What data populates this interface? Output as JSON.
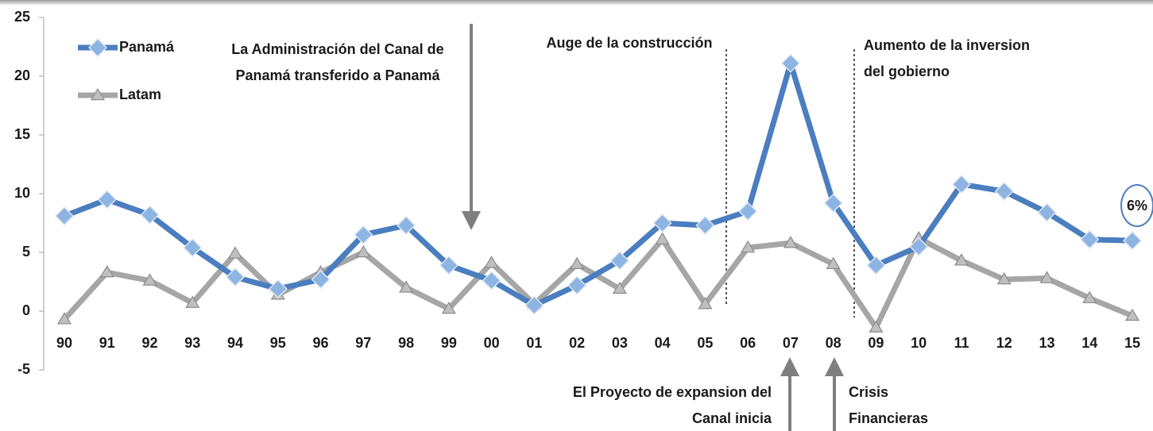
{
  "chart_data": {
    "type": "line",
    "categories": [
      "90",
      "91",
      "92",
      "93",
      "94",
      "95",
      "96",
      "97",
      "98",
      "99",
      "00",
      "01",
      "02",
      "03",
      "04",
      "05",
      "06",
      "07",
      "08",
      "09",
      "10",
      "11",
      "12",
      "13",
      "14",
      "15"
    ],
    "series": [
      {
        "name": "Panamá",
        "color": "#4a7ebf",
        "marker": "diamond",
        "values": [
          8.1,
          9.5,
          8.2,
          5.4,
          2.9,
          1.9,
          2.7,
          6.5,
          7.3,
          3.9,
          2.6,
          0.5,
          2.2,
          4.3,
          7.5,
          7.3,
          8.5,
          21.1,
          9.2,
          3.9,
          5.5,
          10.8,
          10.2,
          8.4,
          6.1,
          6.0
        ]
      },
      {
        "name": "Latam",
        "color": "#a6a6a6",
        "marker": "triangle",
        "values": [
          -0.7,
          3.3,
          2.6,
          0.7,
          4.9,
          1.4,
          3.3,
          5.0,
          2.0,
          0.2,
          4.1,
          0.6,
          4.0,
          1.9,
          6.1,
          0.6,
          5.4,
          5.8,
          4.0,
          -1.4,
          6.2,
          4.3,
          2.7,
          2.8,
          1.1,
          -0.4
        ]
      }
    ],
    "ylim": [
      -5,
      25
    ],
    "yticks": [
      -5,
      0,
      5,
      10,
      15,
      20,
      25
    ],
    "legend": "top-left",
    "annotations": [
      {
        "lines": [
          "La Administración del Canal de",
          "Panamá transferido a Panamá"
        ]
      },
      {
        "lines": [
          "Auge de la construcción"
        ]
      },
      {
        "lines": [
          "Aumento de la inversion",
          "del gobierno"
        ]
      },
      {
        "lines": [
          "El Proyecto de expansion del",
          "Canal inicia"
        ]
      },
      {
        "lines": [
          "Crisis",
          "Financieras"
        ]
      },
      {
        "lines": [
          "6%"
        ]
      }
    ]
  }
}
